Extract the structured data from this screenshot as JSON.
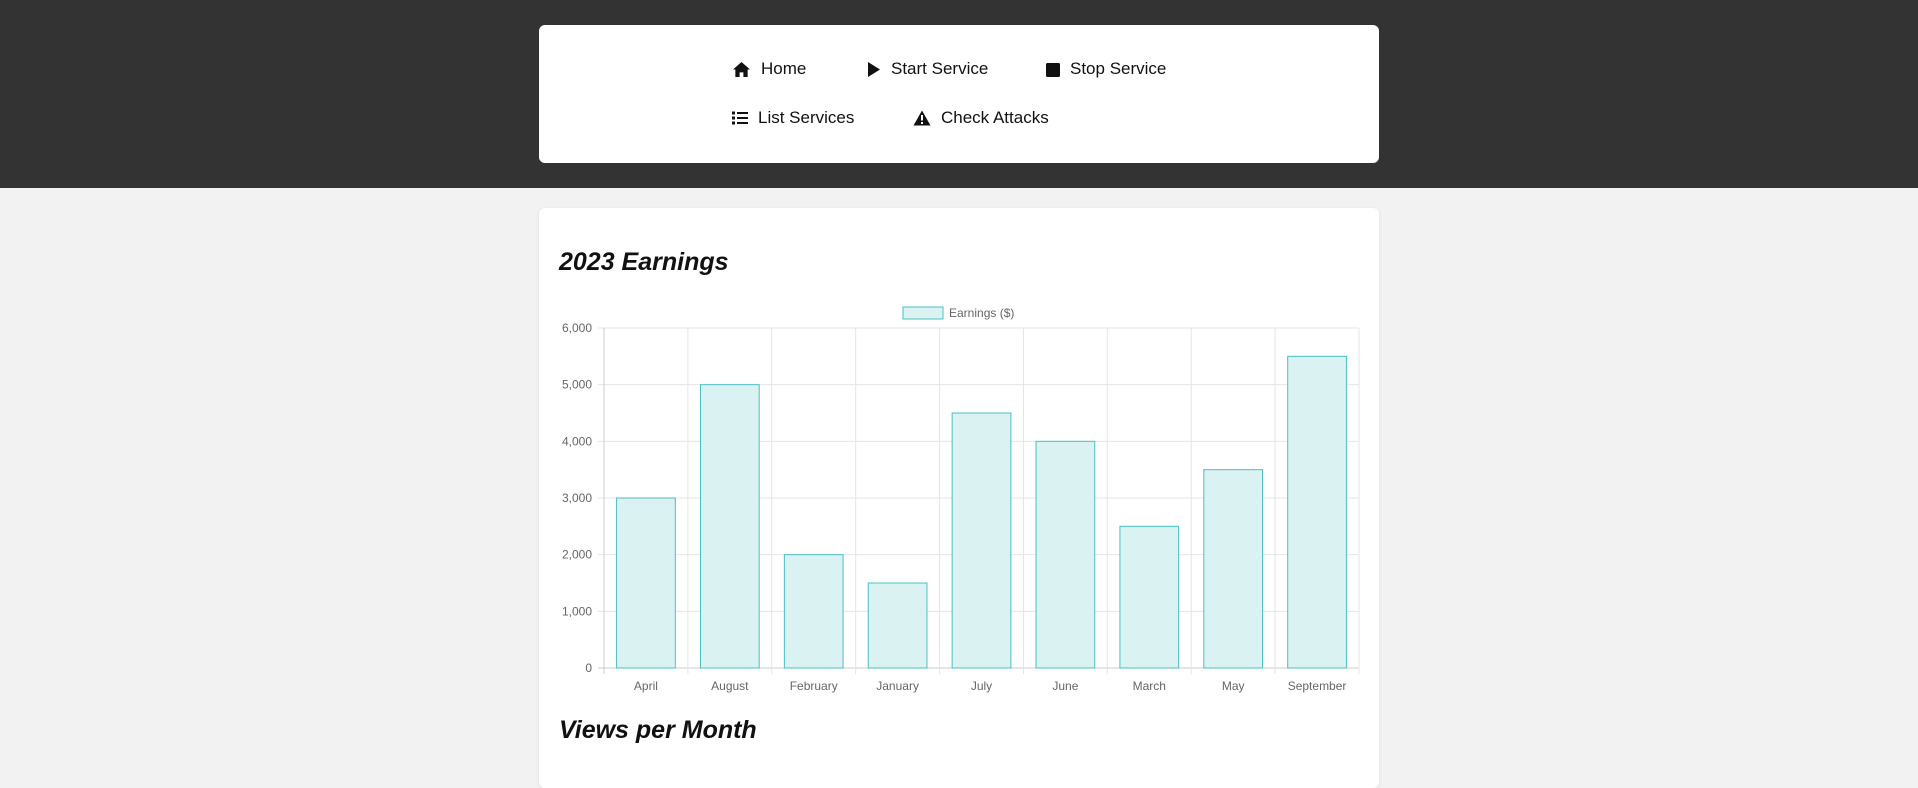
{
  "nav": {
    "items": [
      {
        "label": "Home",
        "icon": "home-icon"
      },
      {
        "label": "Start Service",
        "icon": "play-icon"
      },
      {
        "label": "Stop Service",
        "icon": "stop-icon"
      },
      {
        "label": "List Services",
        "icon": "list-icon"
      },
      {
        "label": "Check Attacks",
        "icon": "warning-icon"
      }
    ]
  },
  "sections": {
    "earnings_title": "2023 Earnings",
    "views_title": "Views per Month"
  },
  "chart_data": {
    "type": "bar",
    "title": "2023 Earnings",
    "categories": [
      "April",
      "August",
      "February",
      "January",
      "July",
      "June",
      "March",
      "May",
      "September"
    ],
    "series": [
      {
        "name": "Earnings ($)",
        "values": [
          3000,
          5000,
          2000,
          1500,
          4500,
          4000,
          2500,
          3500,
          5500
        ]
      }
    ],
    "ylim": [
      0,
      6000
    ],
    "yticks": [
      "0",
      "1,000",
      "2,000",
      "3,000",
      "4,000",
      "5,000",
      "6,000"
    ],
    "xlabel": "",
    "ylabel": "",
    "grid": true,
    "legend": "top-center",
    "colors": {
      "bar_fill": "#dbf2f2",
      "bar_border": "#4bc0c0",
      "grid": "#e5e5e5",
      "tick_text": "#666666"
    }
  }
}
